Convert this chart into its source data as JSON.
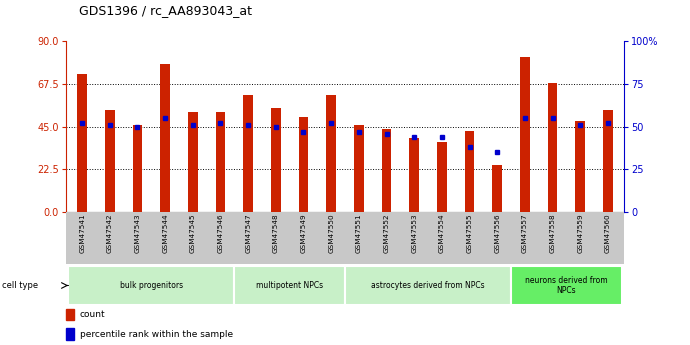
{
  "title": "GDS1396 / rc_AA893043_at",
  "samples": [
    "GSM47541",
    "GSM47542",
    "GSM47543",
    "GSM47544",
    "GSM47545",
    "GSM47546",
    "GSM47547",
    "GSM47548",
    "GSM47549",
    "GSM47550",
    "GSM47551",
    "GSM47552",
    "GSM47553",
    "GSM47554",
    "GSM47555",
    "GSM47556",
    "GSM47557",
    "GSM47558",
    "GSM47559",
    "GSM47560"
  ],
  "counts": [
    73,
    54,
    46,
    78,
    53,
    53,
    62,
    55,
    50,
    62,
    46,
    44,
    39,
    37,
    43,
    25,
    82,
    68,
    48,
    54
  ],
  "percentiles": [
    52,
    51,
    50,
    55,
    51,
    52,
    51,
    50,
    47,
    52,
    47,
    46,
    44,
    44,
    38,
    35,
    55,
    55,
    51,
    52
  ],
  "groups": [
    {
      "label": "bulk progenitors",
      "start": 0,
      "end": 6,
      "color": "#c8f0c8"
    },
    {
      "label": "multipotent NPCs",
      "start": 6,
      "end": 10,
      "color": "#c8f0c8"
    },
    {
      "label": "astrocytes derived from NPCs",
      "start": 10,
      "end": 16,
      "color": "#c8f0c8"
    },
    {
      "label": "neurons derived from\nNPCs",
      "start": 16,
      "end": 20,
      "color": "#66ee66"
    }
  ],
  "ylim_left": [
    0,
    90
  ],
  "ylim_right": [
    0,
    100
  ],
  "yticks_left": [
    0,
    22.5,
    45,
    67.5,
    90
  ],
  "yticks_right": [
    0,
    25,
    50,
    75,
    100
  ],
  "bar_color": "#cc2200",
  "percentile_color": "#0000cc",
  "bar_width": 0.35,
  "xlabelarea_color": "#c8c8c8",
  "celltype_label": "cell type",
  "legend_count": "count",
  "legend_pct": "percentile rank within the sample"
}
